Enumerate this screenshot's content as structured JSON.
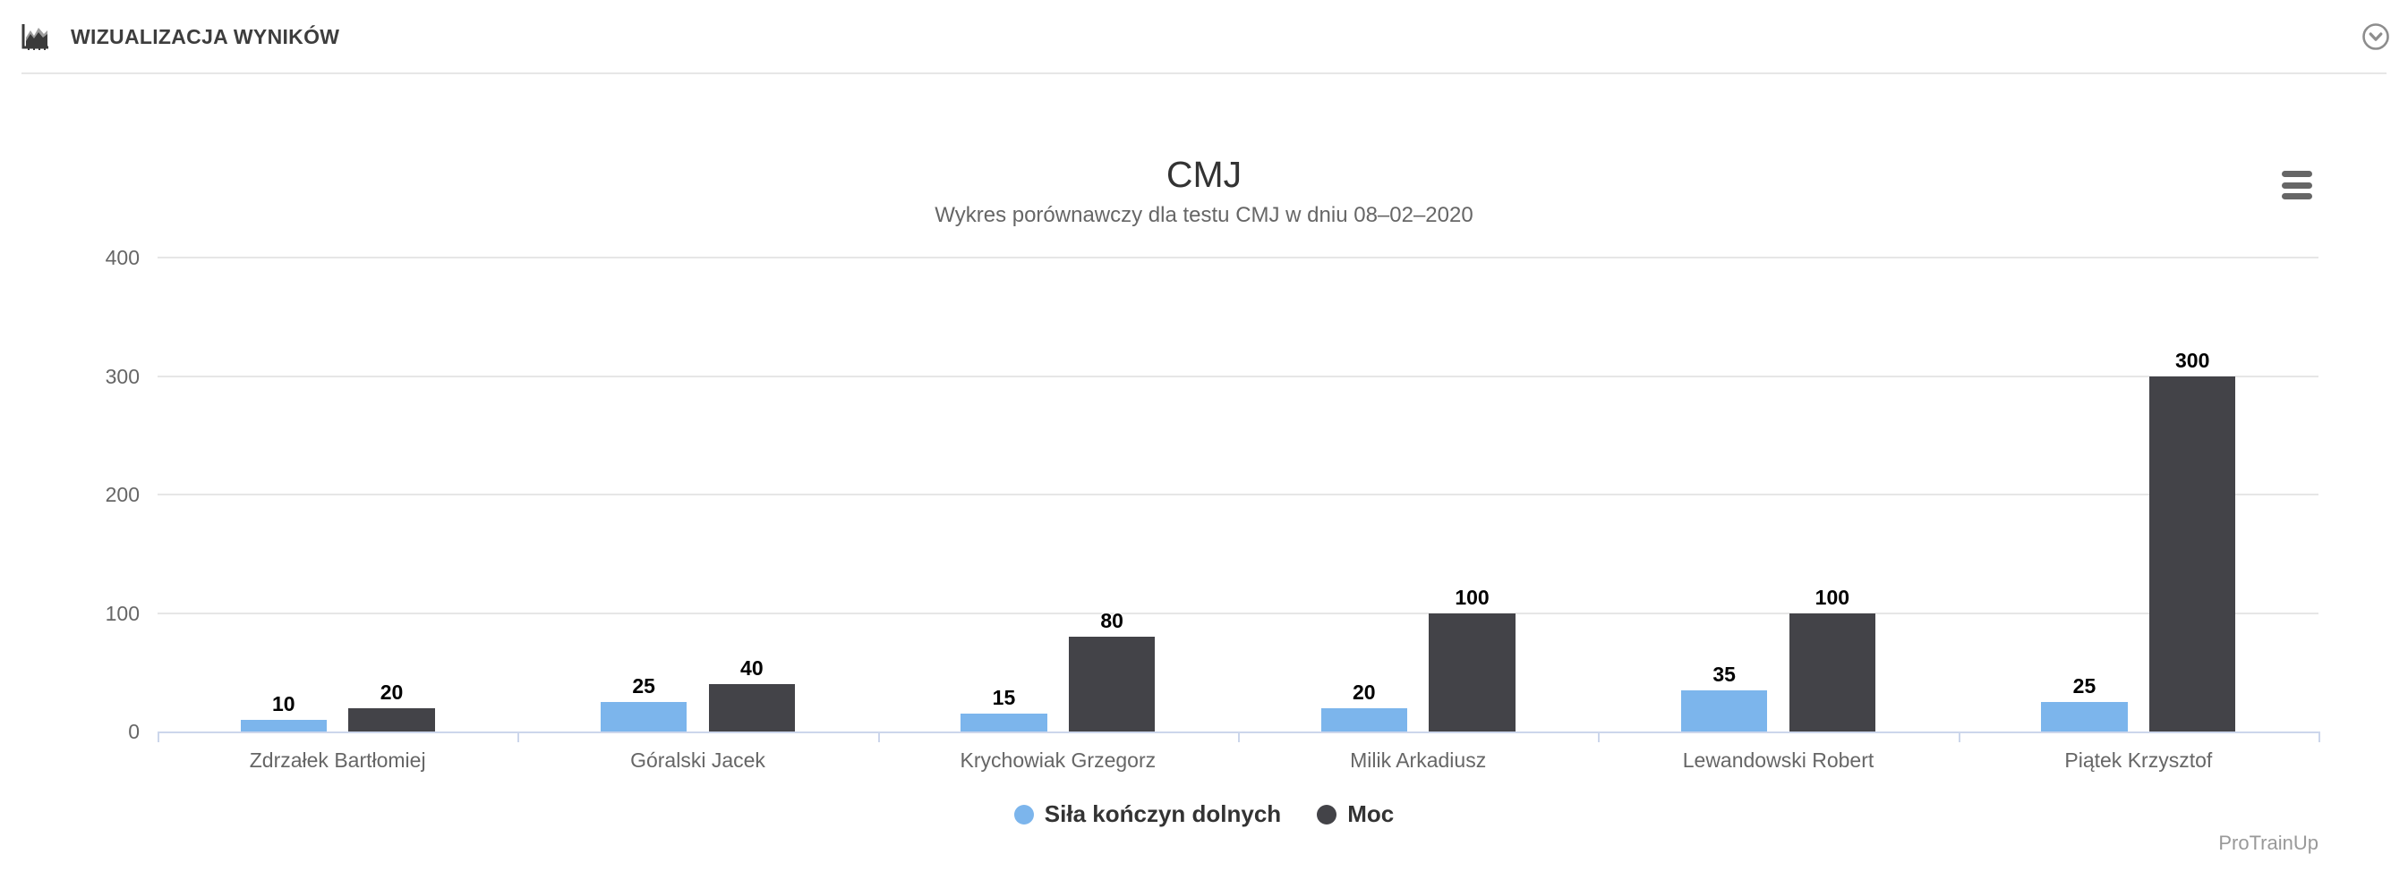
{
  "header": {
    "title": "WIZUALIZACJA WYNIKÓW"
  },
  "chart_data": {
    "type": "bar",
    "title": "CMJ",
    "subtitle": "Wykres porównawczy dla testu CMJ w dniu 08–02–2020",
    "categories": [
      "Zdrzałek Bartłomiej",
      "Góralski Jacek",
      "Krychowiak Grzegorz",
      "Milik Arkadiusz",
      "Lewandowski Robert",
      "Piątek Krzysztof"
    ],
    "series": [
      {
        "name": "Siła kończyn dolnych",
        "color": "#7cb5ec",
        "values": [
          10,
          25,
          15,
          20,
          35,
          25
        ]
      },
      {
        "name": "Moc",
        "color": "#434348",
        "values": [
          20,
          40,
          80,
          100,
          100,
          300
        ]
      }
    ],
    "xlabel": "",
    "ylabel": "",
    "ylim": [
      0,
      400
    ],
    "yticks": [
      0,
      100,
      200,
      300,
      400
    ],
    "grid": true,
    "legend_position": "bottom",
    "data_labels": true
  },
  "credits": {
    "label": "ProTrainUp"
  },
  "icons": {
    "header_icon": "area-chart-icon",
    "panel_toggle": "chevron-down-icon",
    "chart_menu": "hamburger-menu-icon",
    "legend_marker": "circle-marker"
  },
  "colors": {
    "series_1": "#7cb5ec",
    "series_2": "#434348",
    "grid_line": "#e6e6e6",
    "axis_line": "#ccd6eb",
    "muted_text": "#666666",
    "title_text": "#333333",
    "data_label_text": "#000000",
    "legend_text": "#333333",
    "credits_text": "#999999"
  }
}
